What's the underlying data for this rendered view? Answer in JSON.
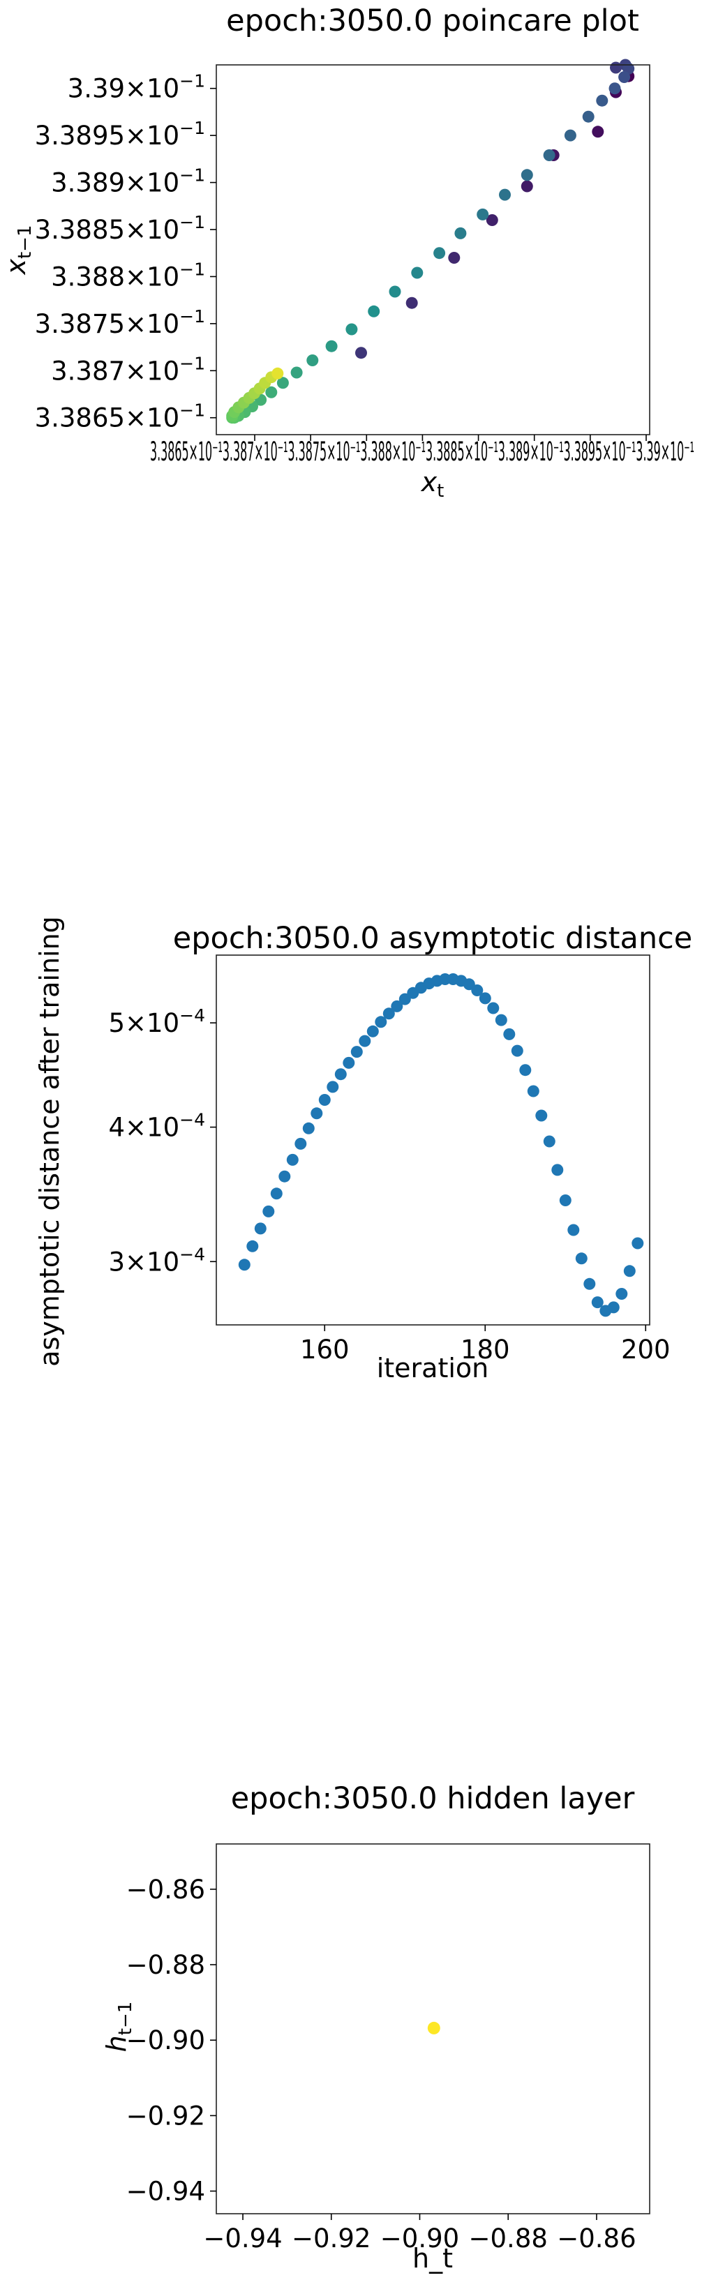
{
  "chart_data": [
    {
      "type": "scatter",
      "title": "epoch:3050.0 poincare plot",
      "xlabel": "x_t",
      "ylabel": "x_{t-1}",
      "xtick_labels": [
        "3.3865×10⁻¹",
        "3.387×10⁻¹",
        "3.3875×10⁻¹",
        "3.388×10⁻¹",
        "3.3885×10⁻¹",
        "3.389×10⁻¹",
        "3.3895×10⁻¹",
        "3.39×10⁻¹"
      ],
      "ytick_labels": [
        {
          "value": 0.33865,
          "mant": "3.3865",
          "exp": "−1"
        },
        {
          "value": 0.3387,
          "mant": "3.387",
          "exp": "−1"
        },
        {
          "value": 0.33875,
          "mant": "3.3875",
          "exp": "−1"
        },
        {
          "value": 0.3388,
          "mant": "3.388",
          "exp": "−1"
        },
        {
          "value": 0.33885,
          "mant": "3.3885",
          "exp": "−1"
        },
        {
          "value": 0.3389,
          "mant": "3.389",
          "exp": "−1"
        },
        {
          "value": 0.33895,
          "mant": "3.3895",
          "exp": "−1"
        },
        {
          "value": 0.339,
          "mant": "3.39",
          "exp": "−1"
        }
      ],
      "xlim": [
        0.338635,
        0.339045
      ],
      "ylim": [
        0.338632,
        0.339025
      ],
      "colormap": "viridis",
      "points": [
        {
          "x": 0.339025,
          "y": 0.339013,
          "c": 0.0
        },
        {
          "x": 0.339013,
          "y": 0.338996,
          "c": 0.02
        },
        {
          "x": 0.338996,
          "y": 0.338954,
          "c": 0.04
        },
        {
          "x": 0.338954,
          "y": 0.338929,
          "c": 0.06
        },
        {
          "x": 0.338929,
          "y": 0.338896,
          "c": 0.08
        },
        {
          "x": 0.338896,
          "y": 0.33886,
          "c": 0.1
        },
        {
          "x": 0.33886,
          "y": 0.33882,
          "c": 0.12
        },
        {
          "x": 0.33882,
          "y": 0.338772,
          "c": 0.14
        },
        {
          "x": 0.338772,
          "y": 0.338719,
          "c": 0.16
        },
        {
          "x": 0.339013,
          "y": 0.339022,
          "c": 0.18
        },
        {
          "x": 0.339022,
          "y": 0.339025,
          "c": 0.2
        },
        {
          "x": 0.339025,
          "y": 0.339021,
          "c": 0.22
        },
        {
          "x": 0.339021,
          "y": 0.339012,
          "c": 0.24
        },
        {
          "x": 0.339012,
          "y": 0.339,
          "c": 0.26
        },
        {
          "x": 0.339,
          "y": 0.338987,
          "c": 0.28
        },
        {
          "x": 0.338987,
          "y": 0.33897,
          "c": 0.3
        },
        {
          "x": 0.33897,
          "y": 0.33895,
          "c": 0.32
        },
        {
          "x": 0.33895,
          "y": 0.338929,
          "c": 0.34
        },
        {
          "x": 0.338929,
          "y": 0.338908,
          "c": 0.36
        },
        {
          "x": 0.338908,
          "y": 0.338887,
          "c": 0.38
        },
        {
          "x": 0.338887,
          "y": 0.338866,
          "c": 0.4
        },
        {
          "x": 0.338866,
          "y": 0.338846,
          "c": 0.42
        },
        {
          "x": 0.338846,
          "y": 0.338825,
          "c": 0.44
        },
        {
          "x": 0.338825,
          "y": 0.338804,
          "c": 0.46
        },
        {
          "x": 0.338804,
          "y": 0.338784,
          "c": 0.48
        },
        {
          "x": 0.338784,
          "y": 0.338763,
          "c": 0.5
        },
        {
          "x": 0.338763,
          "y": 0.338744,
          "c": 0.52
        },
        {
          "x": 0.338744,
          "y": 0.338726,
          "c": 0.54
        },
        {
          "x": 0.338726,
          "y": 0.338711,
          "c": 0.56
        },
        {
          "x": 0.338711,
          "y": 0.338698,
          "c": 0.58
        },
        {
          "x": 0.338698,
          "y": 0.338687,
          "c": 0.6
        },
        {
          "x": 0.338687,
          "y": 0.338677,
          "c": 0.62
        },
        {
          "x": 0.338677,
          "y": 0.338669,
          "c": 0.64
        },
        {
          "x": 0.338669,
          "y": 0.338662,
          "c": 0.66
        },
        {
          "x": 0.338662,
          "y": 0.338656,
          "c": 0.68
        },
        {
          "x": 0.338656,
          "y": 0.338652,
          "c": 0.7
        },
        {
          "x": 0.338652,
          "y": 0.33865,
          "c": 0.72
        },
        {
          "x": 0.33865,
          "y": 0.33865,
          "c": 0.74
        },
        {
          "x": 0.33865,
          "y": 0.338652,
          "c": 0.76
        },
        {
          "x": 0.338652,
          "y": 0.338656,
          "c": 0.78
        },
        {
          "x": 0.338656,
          "y": 0.338661,
          "c": 0.8
        },
        {
          "x": 0.338661,
          "y": 0.338666,
          "c": 0.82
        },
        {
          "x": 0.338666,
          "y": 0.338671,
          "c": 0.84
        },
        {
          "x": 0.338671,
          "y": 0.338676,
          "c": 0.86
        },
        {
          "x": 0.338676,
          "y": 0.338681,
          "c": 0.88
        },
        {
          "x": 0.338681,
          "y": 0.338687,
          "c": 0.9
        },
        {
          "x": 0.338687,
          "y": 0.338693,
          "c": 0.92
        },
        {
          "x": 0.338693,
          "y": 0.338697,
          "c": 0.96
        }
      ]
    },
    {
      "type": "scatter",
      "title": "epoch:3050.0 asymptotic distance",
      "xlabel": "iteration",
      "ylabel": "asymptotic distance after training",
      "y_scale": "log",
      "color": "#1f77b4",
      "xlim": [
        146.5,
        200.5
      ],
      "ylim": [
        0.000262,
        0.000578
      ],
      "xticks": [
        160,
        180,
        200
      ],
      "yticks": [
        {
          "value": 0.0003,
          "mant": "3",
          "exp": "−4"
        },
        {
          "value": 0.0004,
          "mant": "4",
          "exp": "−4"
        },
        {
          "value": 0.0005,
          "mant": "5",
          "exp": "−4"
        }
      ],
      "x": [
        150,
        151,
        152,
        153,
        154,
        155,
        156,
        157,
        158,
        159,
        160,
        161,
        162,
        163,
        164,
        165,
        166,
        167,
        168,
        169,
        170,
        171,
        172,
        173,
        174,
        175,
        176,
        177,
        178,
        179,
        180,
        181,
        182,
        183,
        184,
        185,
        186,
        187,
        188,
        189,
        190,
        191,
        192,
        193,
        194,
        195,
        196,
        197,
        198,
        199
      ],
      "y": [
        0.000298,
        0.00031,
        0.000322,
        0.000334,
        0.000347,
        0.00036,
        0.000373,
        0.000386,
        0.000399,
        0.000412,
        0.000424,
        0.000436,
        0.000448,
        0.000459,
        0.00047,
        0.000481,
        0.000491,
        0.000501,
        0.00051,
        0.000518,
        0.000526,
        0.000533,
        0.000539,
        0.000544,
        0.000547,
        0.000549,
        0.000549,
        0.000547,
        0.000543,
        0.000536,
        0.000527,
        0.000516,
        0.000503,
        0.000488,
        0.000471,
        0.000452,
        0.000432,
        0.00041,
        0.000388,
        0.000365,
        0.000342,
        0.000321,
        0.000302,
        0.000286,
        0.000275,
        0.00027,
        0.000272,
        0.00028,
        0.000294,
        0.000312
      ]
    },
    {
      "type": "scatter",
      "title": "epoch:3050.0 hidden layer",
      "xlabel": "h_t",
      "ylabel": "h_{t-1}",
      "color": "#fde725",
      "xlim": [
        -0.946,
        -0.848
      ],
      "ylim": [
        -0.946,
        -0.848
      ],
      "xticks": [
        -0.94,
        -0.92,
        -0.9,
        -0.88,
        -0.86
      ],
      "xtick_labels": [
        "−0.94",
        "−0.92",
        "−0.90",
        "−0.88",
        "−0.86"
      ],
      "yticks": [
        -0.94,
        -0.92,
        -0.9,
        -0.88,
        -0.86
      ],
      "ytick_labels": [
        "−0.94",
        "−0.92",
        "−0.90",
        "−0.88",
        "−0.86"
      ],
      "x": [
        -0.8968
      ],
      "y": [
        -0.8968
      ]
    }
  ]
}
